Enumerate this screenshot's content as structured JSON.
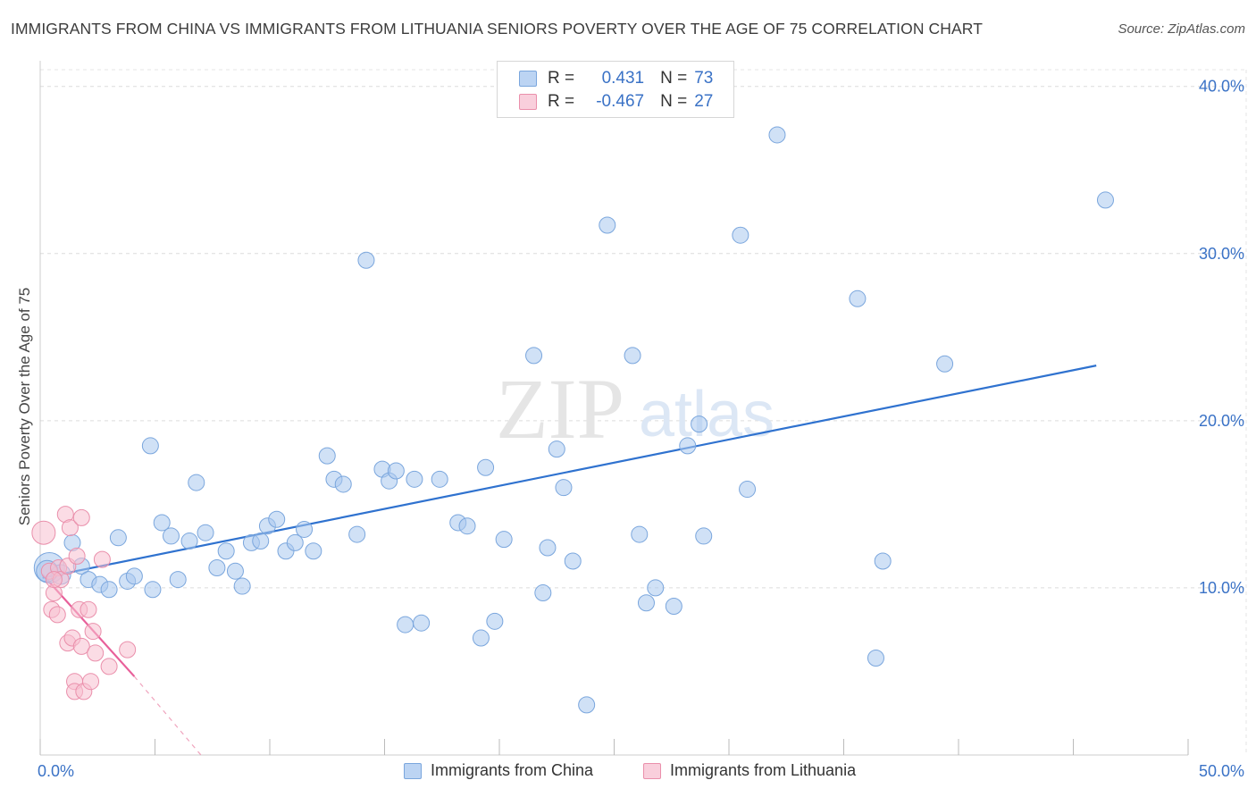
{
  "header": {
    "title": "IMMIGRANTS FROM CHINA VS IMMIGRANTS FROM LITHUANIA SENIORS POVERTY OVER THE AGE OF 75 CORRELATION CHART",
    "source": "Source: ZipAtlas.com"
  },
  "watermark": {
    "zip": "ZIP",
    "atlas": "atlas"
  },
  "stats_legend": {
    "rows": [
      {
        "r_label": "R =",
        "r_value": "0.431",
        "n_label": "N =",
        "n_value": "73",
        "color": "#a9c8ef",
        "border": "#7aa6dd"
      },
      {
        "r_label": "R =",
        "r_value": "-0.467",
        "n_label": "N =",
        "n_value": "27",
        "color": "#f7bfd0",
        "border": "#ea8fab"
      }
    ]
  },
  "chart_data": {
    "type": "scatter",
    "title": "IMMIGRANTS FROM CHINA VS IMMIGRANTS FROM LITHUANIA SENIORS POVERTY OVER THE AGE OF 75 CORRELATION CHART",
    "xlabel": "",
    "ylabel": "Seniors Poverty Over the Age of 75",
    "xlim": [
      0,
      50
    ],
    "ylim": [
      0,
      41
    ],
    "x_tick_labels": [
      "0.0%",
      "50.0%"
    ],
    "y_tick_labels": [
      "10.0%",
      "20.0%",
      "30.0%",
      "40.0%"
    ],
    "y_ticks": [
      10,
      20,
      30,
      40
    ],
    "grid": true,
    "legend_position": "bottom",
    "series": [
      {
        "name": "Immigrants from China",
        "color": "#a9c8ef",
        "stroke": "#7aa6dd",
        "line_color": "#2f72cf",
        "trend": {
          "x": [
            0.1,
            46.0
          ],
          "y": [
            10.6,
            23.3
          ]
        },
        "points": [
          [
            0.4,
            11.2
          ],
          [
            0.9,
            10.8
          ],
          [
            1.4,
            12.7
          ],
          [
            1.8,
            11.3
          ],
          [
            2.1,
            10.5
          ],
          [
            2.6,
            10.2
          ],
          [
            3.0,
            9.9
          ],
          [
            3.4,
            13.0
          ],
          [
            3.8,
            10.4
          ],
          [
            4.1,
            10.7
          ],
          [
            4.8,
            18.5
          ],
          [
            4.9,
            9.9
          ],
          [
            5.3,
            13.9
          ],
          [
            5.7,
            13.1
          ],
          [
            6.0,
            10.5
          ],
          [
            6.5,
            12.8
          ],
          [
            6.8,
            16.3
          ],
          [
            7.2,
            13.3
          ],
          [
            7.7,
            11.2
          ],
          [
            8.1,
            12.2
          ],
          [
            8.5,
            11.0
          ],
          [
            8.8,
            10.1
          ],
          [
            9.2,
            12.7
          ],
          [
            9.6,
            12.8
          ],
          [
            9.9,
            13.7
          ],
          [
            10.3,
            14.1
          ],
          [
            10.7,
            12.2
          ],
          [
            11.1,
            12.7
          ],
          [
            11.5,
            13.5
          ],
          [
            11.9,
            12.2
          ],
          [
            12.5,
            17.9
          ],
          [
            12.8,
            16.5
          ],
          [
            13.2,
            16.2
          ],
          [
            13.8,
            13.2
          ],
          [
            14.2,
            29.6
          ],
          [
            14.9,
            17.1
          ],
          [
            15.2,
            16.4
          ],
          [
            15.5,
            17.0
          ],
          [
            15.9,
            7.8
          ],
          [
            16.3,
            16.5
          ],
          [
            16.6,
            7.9
          ],
          [
            17.4,
            16.5
          ],
          [
            18.2,
            13.9
          ],
          [
            18.6,
            13.7
          ],
          [
            19.2,
            7.0
          ],
          [
            19.4,
            17.2
          ],
          [
            19.8,
            8.0
          ],
          [
            20.2,
            12.9
          ],
          [
            21.5,
            23.9
          ],
          [
            21.9,
            9.7
          ],
          [
            22.1,
            12.4
          ],
          [
            22.5,
            18.3
          ],
          [
            22.8,
            16.0
          ],
          [
            23.2,
            11.6
          ],
          [
            23.8,
            3.0
          ],
          [
            24.7,
            31.7
          ],
          [
            25.8,
            23.9
          ],
          [
            26.1,
            13.2
          ],
          [
            26.4,
            9.1
          ],
          [
            26.8,
            10.0
          ],
          [
            27.6,
            8.9
          ],
          [
            28.2,
            18.5
          ],
          [
            28.7,
            19.8
          ],
          [
            28.9,
            13.1
          ],
          [
            30.5,
            31.1
          ],
          [
            30.8,
            15.9
          ],
          [
            32.1,
            37.1
          ],
          [
            35.6,
            27.3
          ],
          [
            36.4,
            5.8
          ],
          [
            36.7,
            11.6
          ],
          [
            39.4,
            23.4
          ],
          [
            46.4,
            33.2
          ],
          [
            0.3,
            11.0
          ]
        ],
        "sizes": [
          34,
          22,
          18,
          18,
          18,
          18,
          18,
          18,
          18,
          18,
          18,
          18,
          18,
          18,
          18,
          18,
          18,
          18,
          18,
          18,
          18,
          18,
          18,
          18,
          18,
          18,
          18,
          18,
          18,
          18,
          18,
          18,
          18,
          18,
          18,
          18,
          18,
          18,
          18,
          18,
          18,
          18,
          18,
          18,
          18,
          18,
          18,
          18,
          18,
          18,
          18,
          18,
          18,
          18,
          18,
          18,
          18,
          18,
          18,
          18,
          18,
          18,
          18,
          18,
          18,
          18,
          18,
          18,
          18,
          18,
          18,
          18,
          24
        ]
      },
      {
        "name": "Immigrants from Lithuania",
        "color": "#f7bfd0",
        "stroke": "#ea8fab",
        "line_color": "#e8609a",
        "trend": {
          "x": [
            0.1,
            4.1
          ],
          "y": [
            10.8,
            4.7
          ]
        },
        "trend_dashed": {
          "x": [
            4.1,
            7.0
          ],
          "y": [
            4.7,
            0.0
          ]
        },
        "points": [
          [
            0.15,
            13.3
          ],
          [
            0.4,
            11.0
          ],
          [
            0.6,
            9.7
          ],
          [
            0.5,
            8.7
          ],
          [
            0.75,
            8.4
          ],
          [
            0.8,
            11.2
          ],
          [
            0.9,
            10.5
          ],
          [
            1.1,
            14.4
          ],
          [
            1.2,
            11.3
          ],
          [
            1.2,
            6.7
          ],
          [
            1.3,
            13.6
          ],
          [
            1.4,
            7.0
          ],
          [
            1.6,
            11.9
          ],
          [
            1.8,
            14.2
          ],
          [
            1.7,
            8.7
          ],
          [
            1.8,
            6.5
          ],
          [
            2.1,
            8.7
          ],
          [
            2.3,
            7.4
          ],
          [
            1.5,
            4.4
          ],
          [
            1.5,
            3.8
          ],
          [
            1.9,
            3.8
          ],
          [
            2.2,
            4.4
          ],
          [
            2.4,
            6.1
          ],
          [
            2.7,
            11.7
          ],
          [
            3.0,
            5.3
          ],
          [
            3.8,
            6.3
          ],
          [
            0.6,
            10.5
          ]
        ],
        "sizes": [
          26,
          18,
          18,
          18,
          18,
          18,
          18,
          18,
          18,
          18,
          18,
          18,
          18,
          18,
          18,
          18,
          18,
          18,
          18,
          18,
          18,
          18,
          18,
          18,
          18,
          18,
          18
        ]
      }
    ]
  },
  "bottom_legend": {
    "china_label": "Immigrants from China",
    "lithuania_label": "Immigrants from Lithuania"
  }
}
